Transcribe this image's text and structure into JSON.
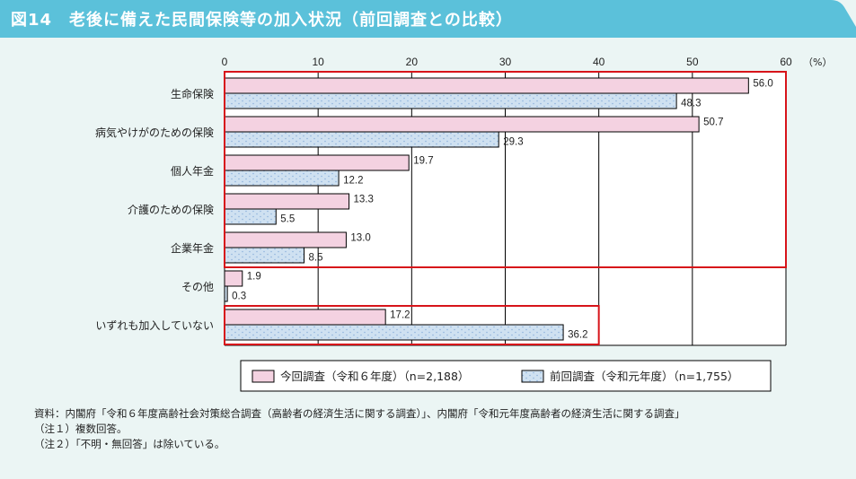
{
  "header": {
    "title": "図14　老後に備えた民間保険等の加入状況（前回調査との比較）"
  },
  "colors": {
    "header": "#5bc1da",
    "current": "#f4d2e1",
    "previous": "#cfe1f1",
    "highlight": "#d7141a"
  },
  "chart_data": {
    "type": "bar",
    "orientation": "horizontal",
    "categories": [
      "生命保険",
      "病気やけがのための保険",
      "個人年金",
      "介護のための保険",
      "企業年金",
      "その他",
      "いずれも加入していない"
    ],
    "series": [
      {
        "name": "今回調査（令和６年度）（n=2,188）",
        "values": [
          56.0,
          50.7,
          19.7,
          13.3,
          13.0,
          1.9,
          17.2
        ]
      },
      {
        "name": "前回調査（令和元年度）（n=1,755）",
        "values": [
          48.3,
          29.3,
          12.2,
          5.5,
          8.5,
          0.3,
          36.2
        ]
      }
    ],
    "xlim": [
      0,
      60
    ],
    "xticks": [
      "0",
      "10",
      "20",
      "30",
      "40",
      "50",
      "60"
    ],
    "unit": "（%）",
    "grid": true,
    "legend": "bottom"
  },
  "notes": [
    "資料：内閣府「令和６年度高齢社会対策総合調査（高齢者の経済生活に関する調査）」、内閣府「令和元年度高齢者の経済生活に関する調査」",
    "（注１）複数回答。",
    "（注２）「不明・無回答」は除いている。"
  ]
}
